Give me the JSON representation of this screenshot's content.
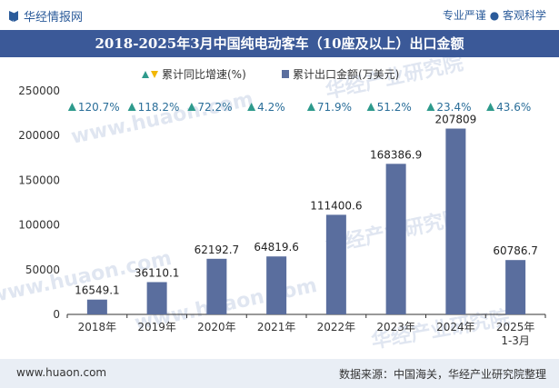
{
  "header": {
    "logo_text": "华经情报网",
    "slogan": "专业严谨 ● 客观科学"
  },
  "chart_data": {
    "type": "bar",
    "title": "2018-2025年3月中国纯电动客车（10座及以上）出口金额",
    "categories": [
      "2018年",
      "2019年",
      "2020年",
      "2021年",
      "2022年",
      "2023年",
      "2024年",
      "2025年\n1-3月"
    ],
    "series": [
      {
        "name": "累计出口金额(万美元)",
        "values": [
          16549.1,
          36110.1,
          62192.7,
          64819.6,
          111400.6,
          168386.9,
          207809,
          60786.7
        ],
        "labels": [
          "16549.1",
          "36110.1",
          "62192.7",
          "64819.6",
          "111400.6",
          "168386.9",
          "207809",
          "60786.7"
        ],
        "color": "#5a6e9e"
      },
      {
        "name": "累计同比增速(%)",
        "values": [
          120.7,
          118.2,
          72.2,
          4.2,
          71.9,
          51.2,
          23.4,
          43.6
        ],
        "labels": [
          "120.7%",
          "118.2%",
          "72.2%",
          "4.2%",
          "71.9%",
          "51.2%",
          "23.4%",
          "43.6%"
        ],
        "color": "#2e9a8c"
      }
    ],
    "ylim": [
      0,
      250000
    ],
    "yticks": [
      "0",
      "50000",
      "100000",
      "150000",
      "200000",
      "250000"
    ],
    "legend_position": "top",
    "grid": false
  },
  "watermarks": [
    "华经产业研究院",
    "www.huaon.com"
  ],
  "footer": {
    "url": "www.huaon.com",
    "source": "数据来源：中国海关，华经产业研究院整理"
  }
}
